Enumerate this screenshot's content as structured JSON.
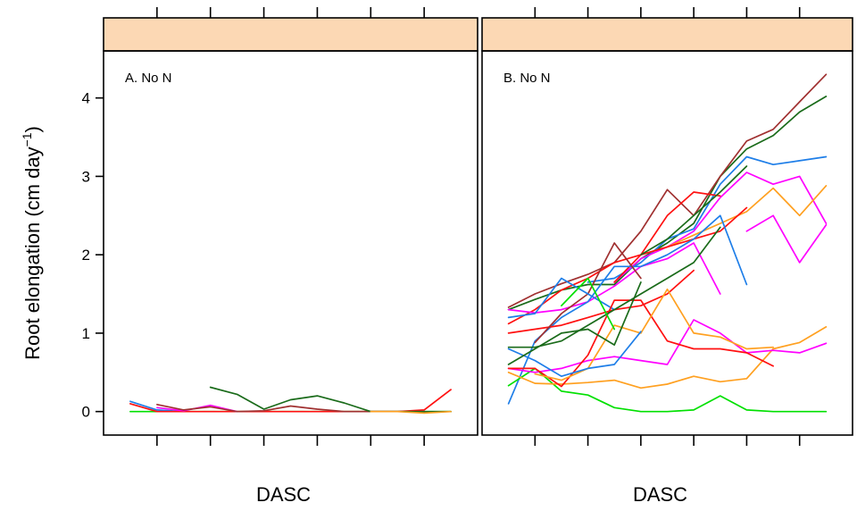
{
  "chart_data": {
    "type": "line",
    "ylabel_main": "Root elongation (cm day",
    "ylabel_sup": "−1",
    "ylabel_close": ")",
    "strip_color": "#fcd8b4",
    "y_ticks": [
      0,
      1,
      2,
      3,
      4
    ],
    "ylim": [
      -0.3,
      4.6
    ],
    "xlim": [
      0,
      14
    ],
    "x_tick_positions": [
      2,
      4,
      6,
      8,
      10,
      12
    ],
    "grid": false,
    "panels": [
      {
        "label": "A. No N",
        "xlabel": "DASC",
        "series": [
          {
            "color": "#00e000",
            "x": [
              1,
              2,
              3,
              4,
              5,
              6,
              7,
              8,
              9,
              10,
              11,
              12,
              13
            ],
            "y": [
              0,
              0,
              0,
              0,
              0,
              0,
              0,
              0,
              0,
              0,
              0,
              0,
              0
            ]
          },
          {
            "color": "#1e7ee8",
            "x": [
              1,
              2,
              3
            ],
            "y": [
              0.13,
              0.02,
              0
            ]
          },
          {
            "color": "#ff1010",
            "x": [
              1,
              2,
              3,
              4,
              5,
              6,
              7,
              8,
              9,
              10,
              11,
              12,
              13
            ],
            "y": [
              0.1,
              0,
              0,
              0,
              0,
              0,
              0,
              0,
              0,
              0,
              0,
              0.02,
              0.28
            ]
          },
          {
            "color": "#ff00ff",
            "x": [
              2,
              3,
              4,
              5
            ],
            "y": [
              0.05,
              0.01,
              0.08,
              0
            ]
          },
          {
            "color": "#a03030",
            "x": [
              2,
              3,
              4,
              5,
              6,
              7,
              8,
              9,
              10,
              11,
              12
            ],
            "y": [
              0.09,
              0.02,
              0.06,
              0,
              0.01,
              0.07,
              0.03,
              0,
              0,
              0,
              0
            ]
          },
          {
            "color": "#1a6b1a",
            "x": [
              4,
              5,
              6,
              7,
              8,
              9,
              10,
              11,
              12,
              13
            ],
            "y": [
              0.31,
              0.22,
              0.03,
              0.15,
              0.2,
              0.11,
              0,
              0,
              0,
              0
            ]
          },
          {
            "color": "#ffa020",
            "x": [
              10,
              11,
              12,
              13
            ],
            "y": [
              0,
              0,
              -0.02,
              0
            ]
          }
        ]
      },
      {
        "label": "B. No N",
        "xlabel": "DASC",
        "series": [
          {
            "color": "#1a6b1a",
            "x": [
              1,
              2,
              3,
              4,
              5,
              6,
              7,
              8,
              9,
              10,
              11,
              12,
              13
            ],
            "y": [
              1.3,
              1.43,
              1.55,
              1.62,
              1.62,
              1.95,
              2.15,
              2.4,
              3.0,
              3.35,
              3.52,
              3.82,
              4.02
            ]
          },
          {
            "color": "#a03030",
            "x": [
              1,
              2,
              3,
              4,
              5,
              6,
              7,
              8,
              9,
              10,
              11,
              12,
              13
            ],
            "y": [
              1.33,
              1.5,
              1.63,
              1.75,
              1.9,
              2.3,
              2.83,
              2.5,
              3.0,
              3.45,
              3.6,
              3.95,
              4.3
            ]
          },
          {
            "color": "#1e7ee8",
            "x": [
              4,
              5,
              6,
              7,
              8,
              9,
              10,
              11,
              12,
              13
            ],
            "y": [
              1.65,
              1.7,
              1.9,
              2.2,
              2.33,
              2.9,
              3.25,
              3.15,
              3.2,
              3.25
            ]
          },
          {
            "color": "#ff00ff",
            "x": [
              5,
              6,
              7,
              8,
              9,
              10,
              11,
              12,
              13
            ],
            "y": [
              1.65,
              1.95,
              2.1,
              2.3,
              2.73,
              3.05,
              2.9,
              3.0,
              2.4
            ]
          },
          {
            "color": "#ffa020",
            "x": [
              6,
              7,
              8,
              9,
              10,
              11,
              12,
              13
            ],
            "y": [
              2.0,
              2.1,
              2.25,
              2.4,
              2.55,
              2.85,
              2.5,
              2.88
            ]
          },
          {
            "color": "#ff1010",
            "x": [
              5,
              6,
              7,
              8,
              9
            ],
            "y": [
              1.65,
              2.0,
              2.5,
              2.8,
              2.75
            ]
          },
          {
            "color": "#ff1010",
            "x": [
              1,
              2,
              3,
              4,
              5,
              6,
              7,
              8,
              9,
              10
            ],
            "y": [
              1.12,
              1.3,
              1.55,
              1.7,
              1.9,
              2.0,
              2.1,
              2.2,
              2.3,
              2.6
            ]
          },
          {
            "color": "#1a6b1a",
            "x": [
              6,
              7,
              8,
              9,
              10
            ],
            "y": [
              2.0,
              2.2,
              2.5,
              2.8,
              3.13
            ]
          },
          {
            "color": "#ff00ff",
            "x": [
              1,
              2,
              3,
              4,
              5,
              6,
              7,
              8,
              9
            ],
            "y": [
              1.3,
              1.26,
              1.3,
              1.4,
              1.6,
              1.85,
              1.95,
              2.15,
              1.5
            ]
          },
          {
            "color": "#1e7ee8",
            "x": [
              1,
              2,
              3,
              4,
              5,
              6,
              7,
              8,
              9,
              10
            ],
            "y": [
              0.1,
              0.9,
              1.2,
              1.4,
              1.85,
              1.85,
              2.0,
              2.2,
              2.5,
              1.62
            ]
          },
          {
            "color": "#ff00ff",
            "x": [
              10,
              11,
              12,
              13
            ],
            "y": [
              2.3,
              2.5,
              1.9,
              2.38
            ]
          },
          {
            "color": "#ff1010",
            "x": [
              1,
              2,
              3,
              4,
              5,
              6,
              7,
              8
            ],
            "y": [
              1.0,
              1.05,
              1.1,
              1.2,
              1.3,
              1.35,
              1.5,
              1.8
            ]
          },
          {
            "color": "#a03030",
            "x": [
              2,
              3,
              4,
              5,
              6
            ],
            "y": [
              0.88,
              1.25,
              1.5,
              2.15,
              1.7
            ]
          },
          {
            "color": "#1e7ee8",
            "x": [
              1,
              2,
              3,
              4,
              5
            ],
            "y": [
              1.2,
              1.25,
              1.7,
              1.5,
              1.3
            ]
          },
          {
            "color": "#00e000",
            "x": [
              1,
              2,
              3,
              4,
              5,
              6,
              7,
              8,
              9,
              10,
              11,
              12,
              13
            ],
            "y": [
              0.33,
              0.55,
              0.26,
              0.21,
              0.05,
              0.0,
              0.0,
              0.02,
              0.2,
              0.02,
              0.0,
              0.0,
              0.0
            ]
          },
          {
            "color": "#ffa020",
            "x": [
              1,
              2,
              3,
              4,
              5,
              6,
              7,
              8,
              9,
              10,
              11,
              12,
              13
            ],
            "y": [
              0.5,
              0.36,
              0.35,
              0.37,
              0.4,
              0.3,
              0.35,
              0.45,
              0.38,
              0.42,
              0.8,
              0.88,
              1.08
            ]
          },
          {
            "color": "#ff00ff",
            "x": [
              1,
              2,
              3,
              4,
              5,
              6,
              7,
              8,
              9,
              10,
              11,
              12,
              13
            ],
            "y": [
              0.55,
              0.5,
              0.55,
              0.65,
              0.7,
              0.65,
              0.6,
              1.17,
              1.0,
              0.75,
              0.78,
              0.75,
              0.87
            ]
          },
          {
            "color": "#ff1010",
            "x": [
              1,
              2,
              3,
              4,
              5,
              6,
              7,
              8,
              9,
              10,
              11
            ],
            "y": [
              0.55,
              0.55,
              0.32,
              0.72,
              1.42,
              1.42,
              0.9,
              0.8,
              0.8,
              0.75,
              0.58
            ]
          },
          {
            "color": "#ffa020",
            "x": [
              2,
              3,
              4,
              5,
              6,
              7,
              8,
              9,
              10,
              11
            ],
            "y": [
              0.48,
              0.4,
              0.55,
              1.1,
              1.0,
              1.56,
              1.0,
              0.95,
              0.8,
              0.82
            ]
          },
          {
            "color": "#1e7ee8",
            "x": [
              1,
              2,
              3,
              4,
              5,
              6
            ],
            "y": [
              0.8,
              0.65,
              0.45,
              0.55,
              0.6,
              1.02
            ]
          },
          {
            "color": "#1a6b1a",
            "x": [
              1,
              2,
              3,
              4,
              5,
              6
            ],
            "y": [
              0.6,
              0.8,
              1.0,
              1.05,
              0.85,
              1.65
            ]
          },
          {
            "color": "#1a6b1a",
            "x": [
              1,
              2,
              3,
              4,
              5,
              6,
              7,
              8,
              9
            ],
            "y": [
              0.82,
              0.82,
              0.9,
              1.1,
              1.3,
              1.5,
              1.7,
              1.9,
              2.35
            ]
          },
          {
            "color": "#00e000",
            "x": [
              3,
              4,
              5
            ],
            "y": [
              1.35,
              1.7,
              1.05
            ]
          }
        ]
      }
    ]
  }
}
